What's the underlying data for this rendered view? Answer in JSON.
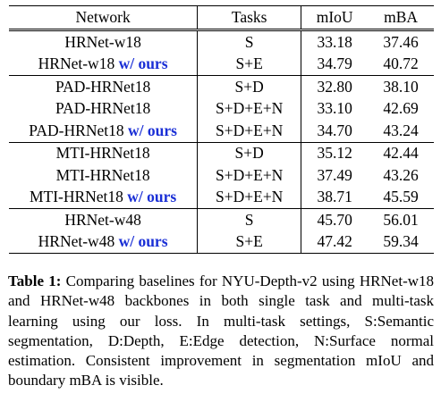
{
  "table": {
    "headers": {
      "network": "Network",
      "tasks": "Tasks",
      "miou": "mIoU",
      "mba": "mBA"
    },
    "groups": [
      {
        "rows": [
          {
            "network": "HRNet-w18",
            "tag": "",
            "tasks": "S",
            "miou": "33.18",
            "mba": "37.46",
            "best": false
          },
          {
            "network": "HRNet-w18",
            "tag": "w/ ours",
            "tasks": "S+E",
            "miou": "34.79",
            "mba": "40.72",
            "best": true
          }
        ]
      },
      {
        "rows": [
          {
            "network": "PAD-HRNet18",
            "tag": "",
            "tasks": "S+D",
            "miou": "32.80",
            "mba": "38.10",
            "best": false
          },
          {
            "network": "PAD-HRNet18",
            "tag": "",
            "tasks": "S+D+E+N",
            "miou": "33.10",
            "mba": "42.69",
            "best": false
          },
          {
            "network": "PAD-HRNet18",
            "tag": "w/ ours",
            "tasks": "S+D+E+N",
            "miou": "34.70",
            "mba": "43.24",
            "best": true
          }
        ]
      },
      {
        "rows": [
          {
            "network": "MTI-HRNet18",
            "tag": "",
            "tasks": "S+D",
            "miou": "35.12",
            "mba": "42.44",
            "best": false
          },
          {
            "network": "MTI-HRNet18",
            "tag": "",
            "tasks": "S+D+E+N",
            "miou": "37.49",
            "mba": "43.26",
            "best": false
          },
          {
            "network": "MTI-HRNet18",
            "tag": "w/ ours",
            "tasks": "S+D+E+N",
            "miou": "38.71",
            "mba": "45.59",
            "best": true
          }
        ]
      },
      {
        "rows": [
          {
            "network": "HRNet-w48",
            "tag": "",
            "tasks": "S",
            "miou": "45.70",
            "mba": "56.01",
            "best": false
          },
          {
            "network": "HRNet-w48",
            "tag": "w/ ours",
            "tasks": "S+E",
            "miou": "47.42",
            "mba": "59.34",
            "best": true
          }
        ]
      }
    ]
  },
  "caption": {
    "label": "Table 1:",
    "text": "Comparing baselines for NYU-Depth-v2 using HRNet-w18 and HRNet-w48 backbones in both single task and multi-task learning using our loss. In multi-task settings, S:Semantic segmentation, D:Depth, E:Edge detection, N:Surface normal estimation. Consistent improvement in segmentation mIoU and boundary mBA is visible."
  },
  "colors": {
    "ours_tag": "#1a2fd6"
  }
}
